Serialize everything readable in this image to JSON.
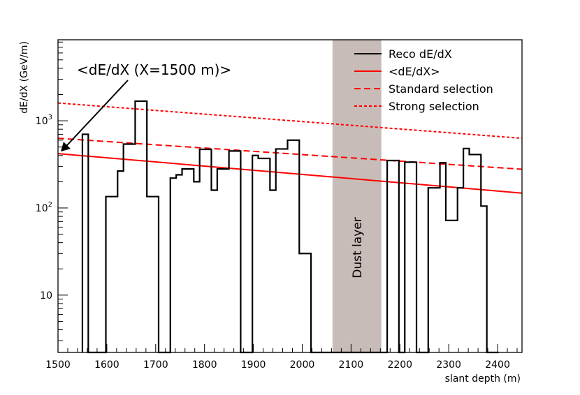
{
  "chart_data": {
    "type": "line",
    "title": "",
    "xlabel": "slant depth (m)",
    "ylabel": "dE/dX (GeV/m)",
    "xlim": [
      1500,
      2450
    ],
    "ylim": [
      2.2,
      8500
    ],
    "yscale": "log",
    "x_ticks": [
      1500,
      1600,
      1700,
      1800,
      1900,
      2000,
      2100,
      2200,
      2300,
      2400
    ],
    "y_ticks": [
      {
        "value": 10,
        "label": "10"
      },
      {
        "value": 100,
        "label": "10^2"
      },
      {
        "value": 1000,
        "label": "10^3"
      }
    ],
    "histogram": {
      "name": "Reco dE/dX",
      "color": "#000000",
      "bin_width": 12,
      "bins": [
        [
          1550,
          700
        ],
        [
          1562,
          2.2
        ],
        [
          1574,
          2.2
        ],
        [
          1586,
          2.2
        ],
        [
          1598,
          135
        ],
        [
          1610,
          135
        ],
        [
          1622,
          265
        ],
        [
          1634,
          540
        ],
        [
          1646,
          540
        ],
        [
          1658,
          1680
        ],
        [
          1670,
          1680
        ],
        [
          1682,
          135
        ],
        [
          1694,
          135
        ],
        [
          1706,
          2.2
        ],
        [
          1718,
          2.2
        ],
        [
          1730,
          220
        ],
        [
          1742,
          240
        ],
        [
          1754,
          280
        ],
        [
          1766,
          280
        ],
        [
          1778,
          200
        ],
        [
          1790,
          470
        ],
        [
          1802,
          470
        ],
        [
          1814,
          160
        ],
        [
          1826,
          280
        ],
        [
          1838,
          280
        ],
        [
          1850,
          450
        ],
        [
          1862,
          450
        ],
        [
          1874,
          2.2
        ],
        [
          1886,
          2.2
        ],
        [
          1898,
          400
        ],
        [
          1910,
          370
        ],
        [
          1922,
          370
        ],
        [
          1934,
          160
        ],
        [
          1946,
          475
        ],
        [
          1958,
          475
        ],
        [
          1970,
          600
        ],
        [
          1982,
          600
        ],
        [
          1994,
          30
        ],
        [
          2006,
          30
        ],
        [
          2018,
          2.2
        ],
        [
          2030,
          2.2
        ],
        [
          2042,
          2.2
        ],
        [
          2054,
          2.2
        ],
        [
          2066,
          2.2
        ],
        [
          2078,
          2.2
        ],
        [
          2090,
          2.2
        ],
        [
          2102,
          2.2
        ],
        [
          2114,
          2.2
        ],
        [
          2126,
          2.2
        ],
        [
          2138,
          2.2
        ],
        [
          2150,
          2.2
        ],
        [
          2162,
          2.2
        ],
        [
          2174,
          350
        ],
        [
          2186,
          350
        ],
        [
          2198,
          2.2
        ],
        [
          2210,
          335
        ],
        [
          2222,
          335
        ],
        [
          2234,
          2.2
        ],
        [
          2246,
          2.2
        ],
        [
          2258,
          170
        ],
        [
          2270,
          170
        ],
        [
          2282,
          330
        ],
        [
          2294,
          72
        ],
        [
          2306,
          72
        ],
        [
          2318,
          170
        ],
        [
          2330,
          480
        ],
        [
          2342,
          410
        ],
        [
          2354,
          410
        ],
        [
          2366,
          105
        ],
        [
          2378,
          2.2
        ],
        [
          2390,
          2.2
        ]
      ]
    },
    "series": [
      {
        "name": "<dE/dX>",
        "style": "solid",
        "color": "#ff0000",
        "x": [
          1500,
          2450
        ],
        "y": [
          420,
          148
        ]
      },
      {
        "name": "Standard selection",
        "style": "dashed",
        "color": "#ff0000",
        "x": [
          1500,
          2450
        ],
        "y": [
          630,
          278
        ]
      },
      {
        "name": "Strong selection",
        "style": "dotted",
        "color": "#ff0000",
        "x": [
          1500,
          2450
        ],
        "y": [
          1600,
          630
        ]
      }
    ],
    "band": {
      "label": "Dust layer",
      "x_start": 2062,
      "x_end": 2162,
      "color": "#c8bcb8"
    },
    "annotation": {
      "text": "<dE/dX (X=1500 m)>",
      "x": 1500,
      "y": 420
    },
    "legend": {
      "position": "top-right",
      "entries": [
        {
          "label": "Reco dE/dX",
          "style": "solid",
          "color": "#000000"
        },
        {
          "label": "<dE/dX>",
          "style": "solid",
          "color": "#ff0000"
        },
        {
          "label": "Standard selection",
          "style": "dashed",
          "color": "#ff0000"
        },
        {
          "label": "Strong selection",
          "style": "dotted",
          "color": "#ff0000"
        }
      ]
    }
  }
}
